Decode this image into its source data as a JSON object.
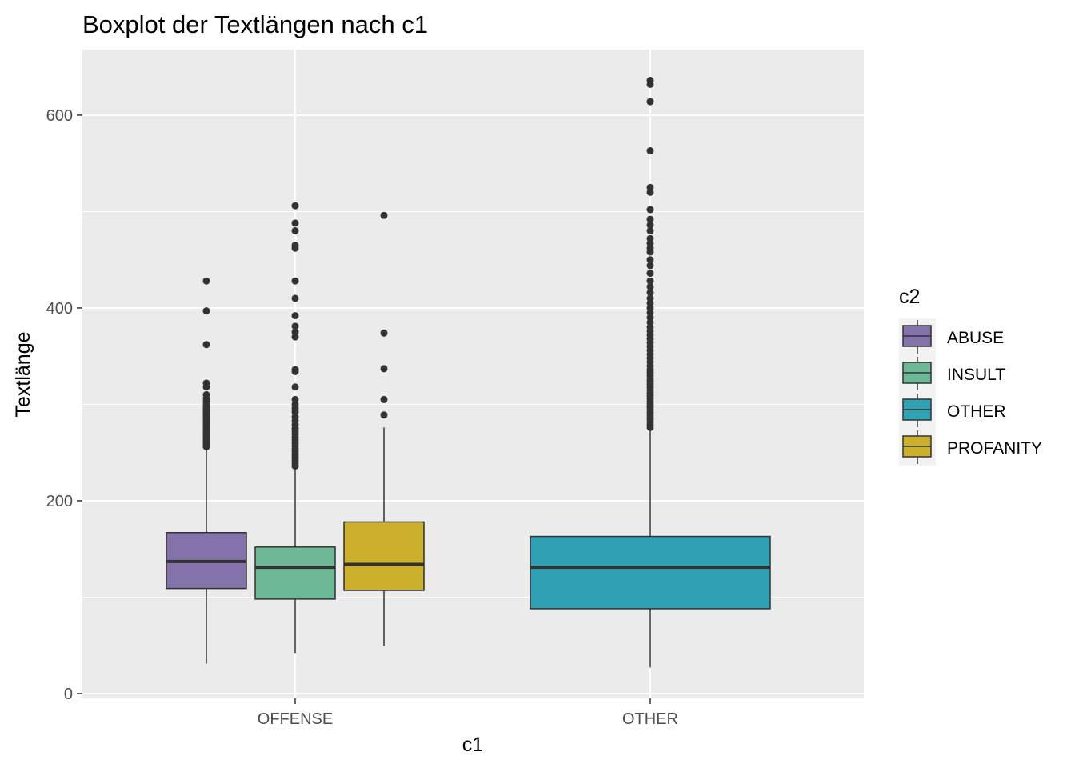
{
  "chart_data": {
    "type": "boxplot",
    "title": "Boxplot der Textlängen nach c1",
    "xlabel": "c1",
    "ylabel": "Textlänge",
    "ylim": [
      -5,
      668
    ],
    "yticks": [
      0,
      200,
      400,
      600
    ],
    "y_minor_ticks": [
      100,
      300,
      500
    ],
    "categories": [
      "OFFENSE",
      "OTHER"
    ],
    "grid": true,
    "legend": {
      "title": "c2",
      "placement": "right",
      "entries": [
        {
          "label": "ABUSE",
          "color": "#8373AA"
        },
        {
          "label": "INSULT",
          "color": "#6DB997"
        },
        {
          "label": "OTHER",
          "color": "#31A2B4"
        },
        {
          "label": "PROFANITY",
          "color": "#CCB02C"
        }
      ]
    },
    "boxes": [
      {
        "category": "OFFENSE",
        "group": "ABUSE",
        "color": "#8373AA",
        "min": 31,
        "q1": 109,
        "median": 137,
        "q3": 167,
        "max": 254,
        "outliers": [
          256,
          258,
          260,
          262,
          264,
          266,
          268,
          270,
          272,
          274,
          276,
          278,
          280,
          282,
          284,
          286,
          288,
          290,
          292,
          294,
          296,
          298,
          300,
          303,
          306,
          310,
          318,
          322,
          362,
          397,
          428
        ]
      },
      {
        "category": "OFFENSE",
        "group": "INSULT",
        "color": "#6DB997",
        "min": 42,
        "q1": 98,
        "median": 131,
        "q3": 152,
        "max": 234,
        "outliers": [
          236,
          239,
          242,
          245,
          248,
          251,
          254,
          257,
          260,
          263,
          266,
          269,
          272,
          275,
          279,
          283,
          287,
          292,
          296,
          300,
          305,
          318,
          334,
          336,
          370,
          375,
          381,
          392,
          410,
          428,
          462,
          465,
          480,
          488,
          506
        ]
      },
      {
        "category": "OFFENSE",
        "group": "PROFANITY",
        "color": "#CCB02C",
        "min": 49,
        "q1": 107,
        "median": 134,
        "q3": 178,
        "max": 276,
        "outliers": [
          289,
          305,
          337,
          374,
          496
        ]
      },
      {
        "category": "OTHER",
        "group": "OTHER",
        "color": "#31A2B4",
        "min": 27,
        "q1": 88,
        "median": 131,
        "q3": 163,
        "max": 274,
        "outliers": [
          276,
          279,
          282,
          285,
          288,
          291,
          294,
          297,
          300,
          303,
          306,
          309,
          312,
          315,
          318,
          321,
          324,
          327,
          330,
          333,
          336,
          340,
          344,
          348,
          352,
          356,
          360,
          364,
          368,
          372,
          376,
          380,
          385,
          390,
          395,
          400,
          405,
          410,
          416,
          422,
          428,
          436,
          444,
          450,
          458,
          462,
          467,
          472,
          480,
          486,
          492,
          502,
          520,
          525,
          563,
          614,
          632,
          636
        ]
      }
    ]
  }
}
